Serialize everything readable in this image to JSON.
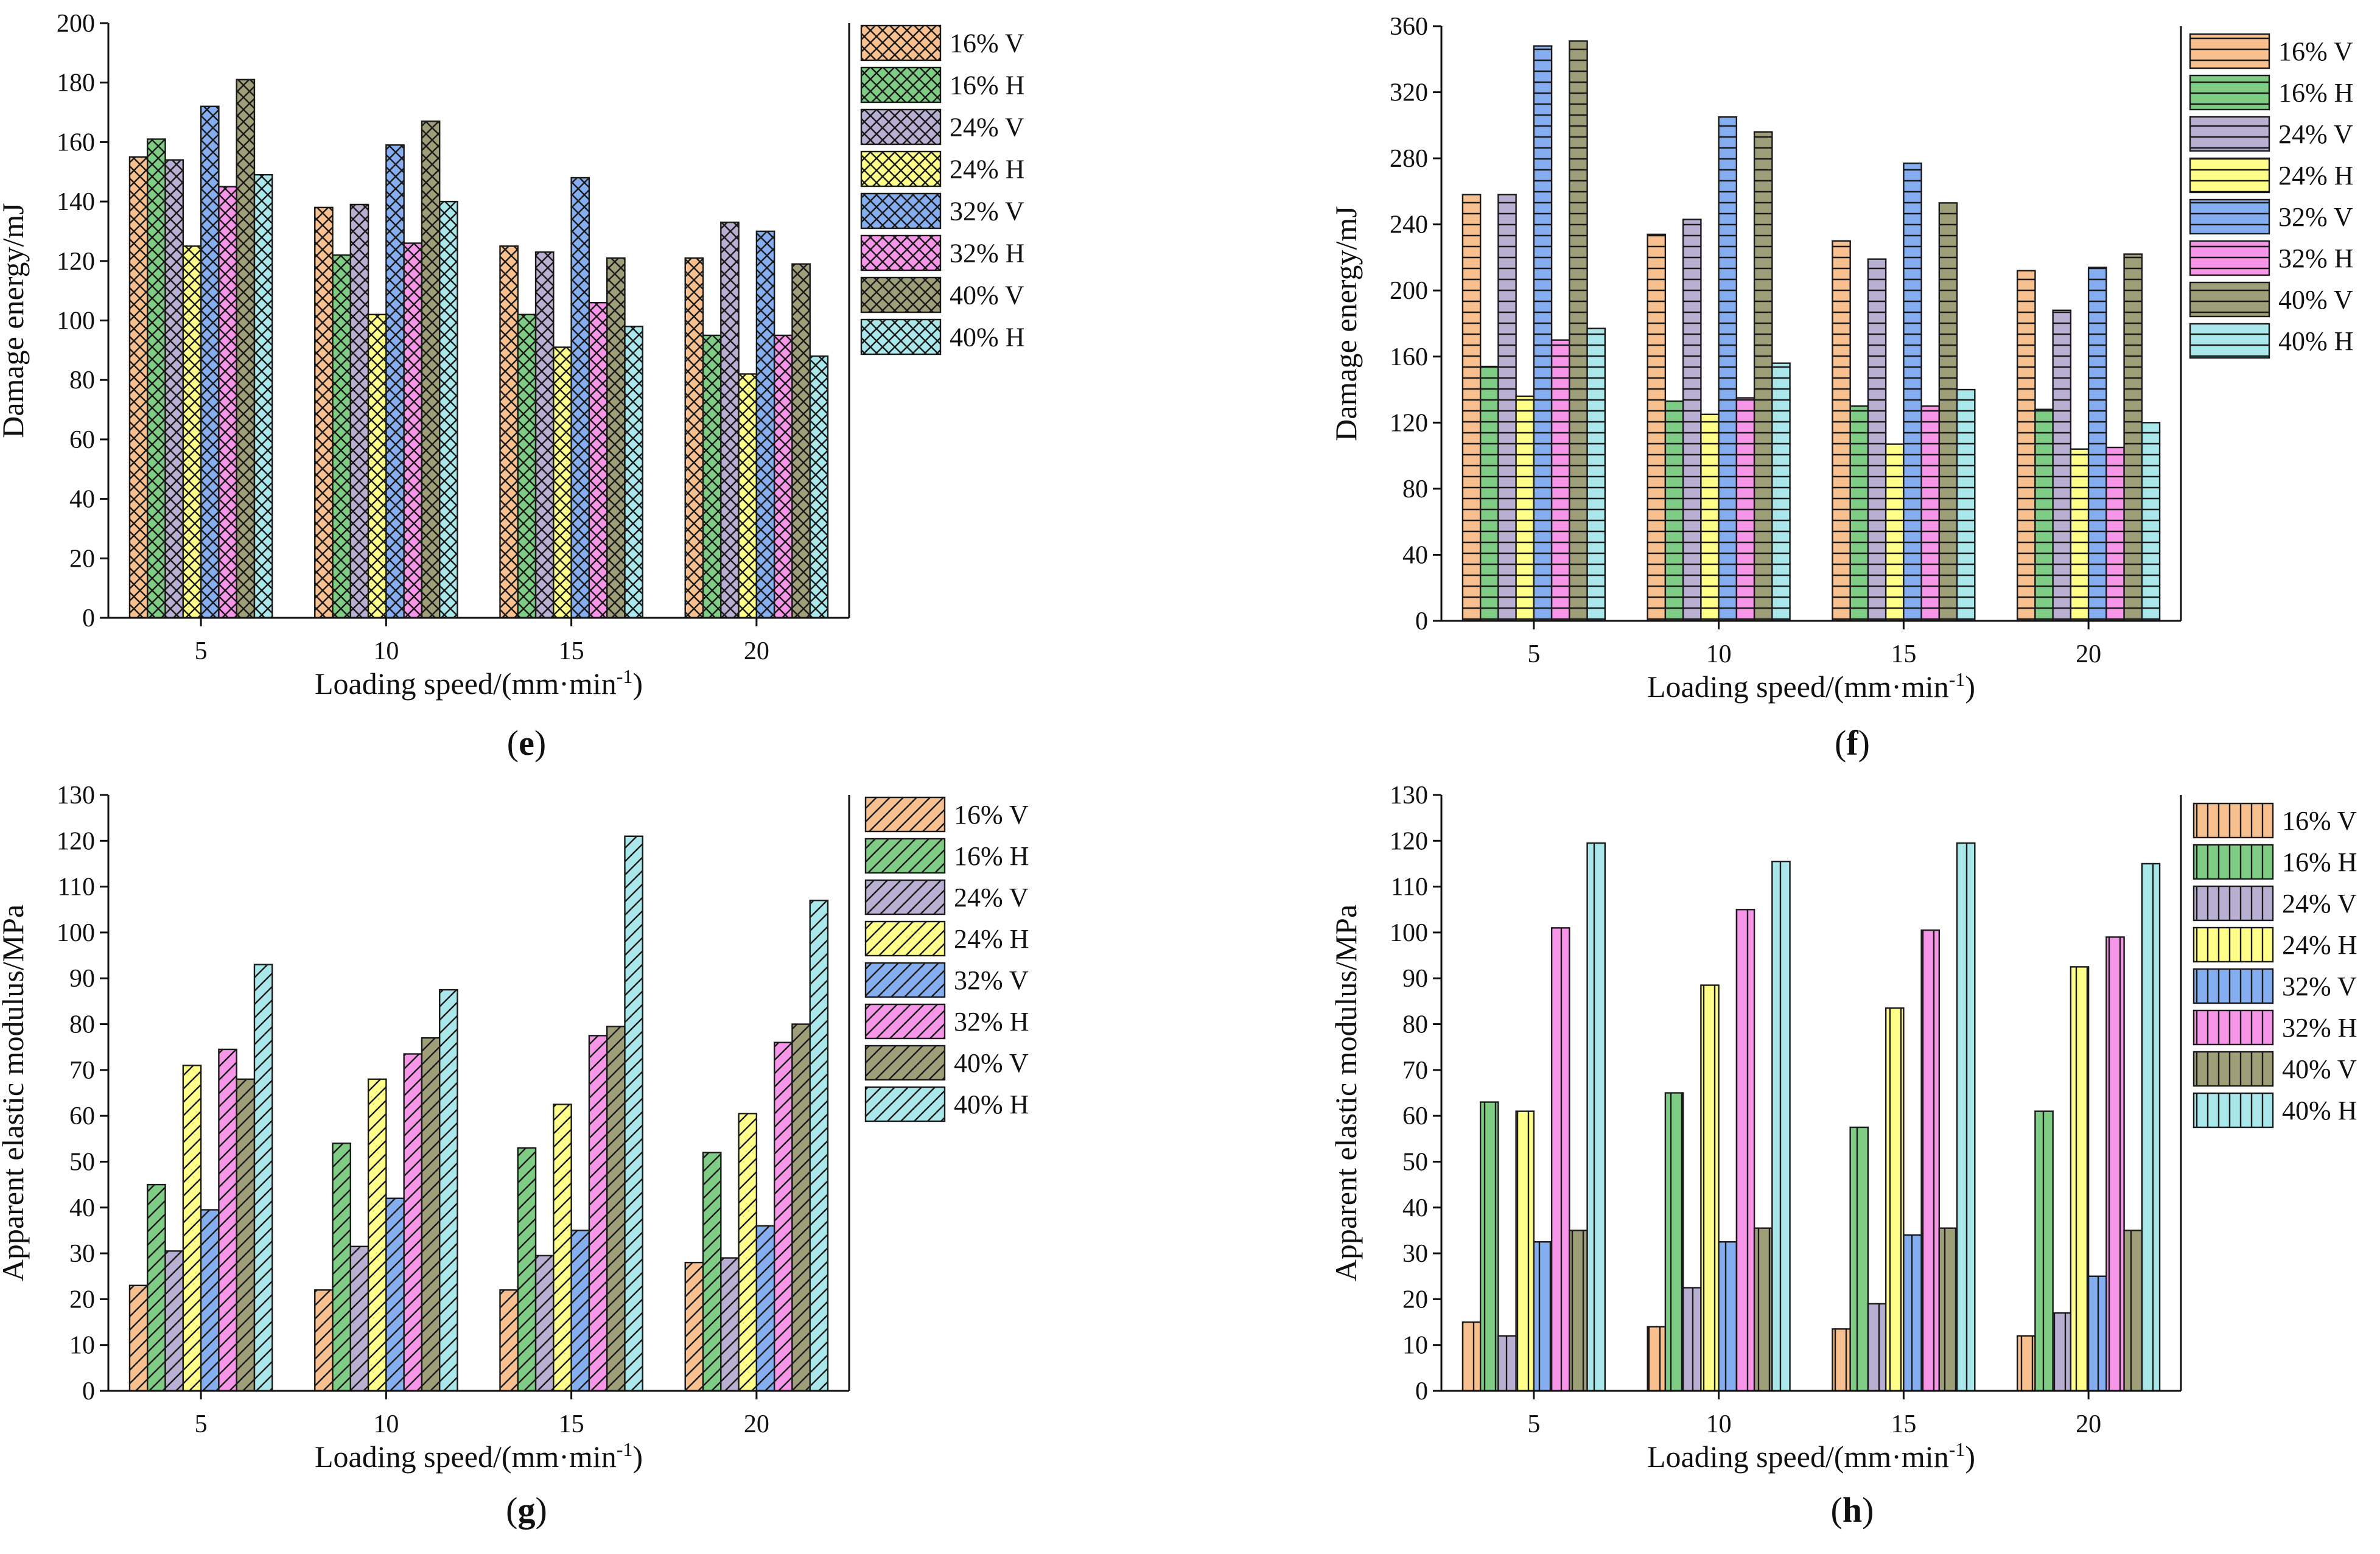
{
  "colors": {
    "16% V": "#F9C08F",
    "16% H": "#7FCC85",
    "24% V": "#B8AFD3",
    "24% H": "#FFFF8A",
    "32% V": "#84AEF0",
    "32% H": "#F795E8",
    "40% V": "#9E9E78",
    "40% H": "#A9E7EA"
  },
  "chart_data": [
    {
      "type": "bar",
      "panel": "(e)",
      "pattern": "crosshatch",
      "xlabel": "Loading speed/(mm·min-1)",
      "ylabel": "Damage energy/mJ",
      "categories": [
        "5",
        "10",
        "15",
        "20"
      ],
      "ylim": [
        0,
        200
      ],
      "yticks": [
        0,
        20,
        40,
        60,
        80,
        100,
        120,
        140,
        160,
        180,
        200
      ],
      "series": [
        {
          "name": "16% V",
          "values": [
            155,
            138,
            125,
            121
          ]
        },
        {
          "name": "16% H",
          "values": [
            161,
            122,
            102,
            95
          ]
        },
        {
          "name": "24% V",
          "values": [
            154,
            139,
            123,
            133
          ]
        },
        {
          "name": "24% H",
          "values": [
            125,
            102,
            91,
            82
          ]
        },
        {
          "name": "32% V",
          "values": [
            172,
            159,
            148,
            130
          ]
        },
        {
          "name": "32% H",
          "values": [
            145,
            126,
            106,
            95
          ]
        },
        {
          "name": "40% V",
          "values": [
            181,
            167,
            121,
            119
          ]
        },
        {
          "name": "40% H",
          "values": [
            149,
            140,
            98,
            88
          ]
        }
      ]
    },
    {
      "type": "bar",
      "panel": "(f)",
      "pattern": "horizontal",
      "xlabel": "Loading speed/(mm·min-1)",
      "ylabel": "Damage energy/mJ",
      "categories": [
        "5",
        "10",
        "15",
        "20"
      ],
      "ylim": [
        0,
        360
      ],
      "yticks": [
        0,
        40,
        80,
        120,
        160,
        200,
        240,
        280,
        320,
        360
      ],
      "series": [
        {
          "name": "16% V",
          "values": [
            258,
            234,
            230,
            212
          ]
        },
        {
          "name": "16% H",
          "values": [
            154,
            133,
            130,
            128
          ]
        },
        {
          "name": "24% V",
          "values": [
            258,
            243,
            219,
            188
          ]
        },
        {
          "name": "24% H",
          "values": [
            136,
            125,
            107,
            104
          ]
        },
        {
          "name": "32% V",
          "values": [
            348,
            305,
            277,
            214
          ]
        },
        {
          "name": "32% H",
          "values": [
            170,
            135,
            130,
            105
          ]
        },
        {
          "name": "40% V",
          "values": [
            351,
            296,
            253,
            222
          ]
        },
        {
          "name": "40% H",
          "values": [
            177,
            156,
            140,
            120
          ]
        }
      ]
    },
    {
      "type": "bar",
      "panel": "(g)",
      "pattern": "diagonal",
      "xlabel": "Loading speed/(mm·min-1)",
      "ylabel": "Apparent elastic modulus/MPa",
      "categories": [
        "5",
        "10",
        "15",
        "20"
      ],
      "ylim": [
        0,
        130
      ],
      "yticks": [
        0,
        10,
        20,
        30,
        40,
        50,
        60,
        70,
        80,
        90,
        100,
        110,
        120,
        130
      ],
      "series": [
        {
          "name": "16% V",
          "values": [
            23,
            22,
            22,
            28
          ]
        },
        {
          "name": "16% H",
          "values": [
            45,
            54,
            53,
            52
          ]
        },
        {
          "name": "24% V",
          "values": [
            30.5,
            31.5,
            29.5,
            29
          ]
        },
        {
          "name": "24% H",
          "values": [
            71,
            68,
            62.5,
            60.5
          ]
        },
        {
          "name": "32% V",
          "values": [
            39.5,
            42,
            35,
            36
          ]
        },
        {
          "name": "32% H",
          "values": [
            74.5,
            73.5,
            77.5,
            76
          ]
        },
        {
          "name": "40% V",
          "values": [
            68,
            77,
            79.5,
            80
          ]
        },
        {
          "name": "40% H",
          "values": [
            93,
            87.5,
            121,
            107
          ]
        }
      ]
    },
    {
      "type": "bar",
      "panel": "(h)",
      "pattern": "vertical",
      "xlabel": "Loading speed/(mm·min-1)",
      "ylabel": "Apparent elastic modulus/MPa",
      "categories": [
        "5",
        "10",
        "15",
        "20"
      ],
      "ylim": [
        0,
        130
      ],
      "yticks": [
        0,
        10,
        20,
        30,
        40,
        50,
        60,
        70,
        80,
        90,
        100,
        110,
        120,
        130
      ],
      "series": [
        {
          "name": "16% V",
          "values": [
            15,
            14,
            13.5,
            12
          ]
        },
        {
          "name": "16% H",
          "values": [
            63,
            65,
            57.5,
            61
          ]
        },
        {
          "name": "24% V",
          "values": [
            12,
            22.5,
            19,
            17
          ]
        },
        {
          "name": "24% H",
          "values": [
            61,
            88.5,
            83.5,
            92.5
          ]
        },
        {
          "name": "32% V",
          "values": [
            32.5,
            32.5,
            34,
            25
          ]
        },
        {
          "name": "32% H",
          "values": [
            101,
            105,
            100.5,
            99
          ]
        },
        {
          "name": "40% V",
          "values": [
            35,
            35.5,
            35.5,
            35
          ]
        },
        {
          "name": "40% H",
          "values": [
            119.5,
            115.5,
            119.5,
            115
          ]
        }
      ]
    }
  ]
}
